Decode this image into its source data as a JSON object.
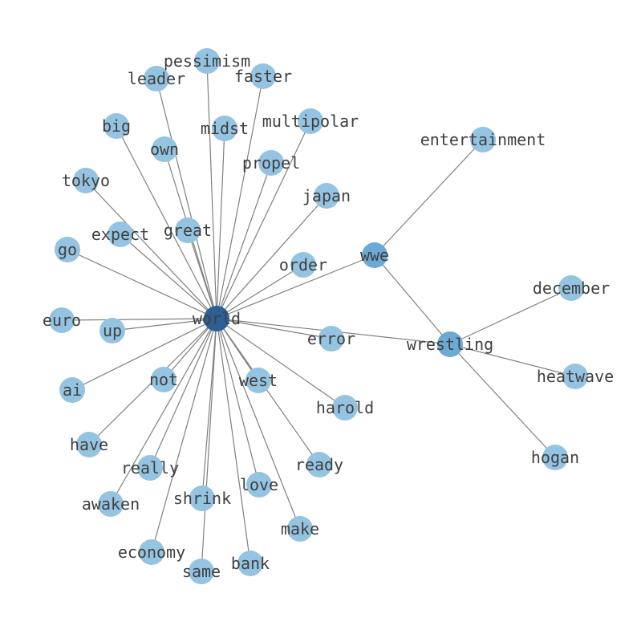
{
  "colors": {
    "hub": "#2d5f95",
    "secondary": "#6aaad5",
    "leaf": "#94c4e1",
    "edge": "#808080",
    "label": "#404040"
  },
  "nodes": [
    {
      "id": "world",
      "role": "hub"
    },
    {
      "id": "wwe",
      "role": "secondary"
    },
    {
      "id": "wrestling",
      "role": "secondary"
    },
    {
      "id": "entertainment",
      "role": "leaf"
    },
    {
      "id": "december",
      "role": "leaf"
    },
    {
      "id": "heatwave",
      "role": "leaf"
    },
    {
      "id": "hogan",
      "role": "leaf"
    },
    {
      "id": "pessimism",
      "role": "leaf"
    },
    {
      "id": "leader",
      "role": "leaf"
    },
    {
      "id": "faster",
      "role": "leaf"
    },
    {
      "id": "multipolar",
      "role": "leaf"
    },
    {
      "id": "midst",
      "role": "leaf"
    },
    {
      "id": "big",
      "role": "leaf"
    },
    {
      "id": "own",
      "role": "leaf"
    },
    {
      "id": "propel",
      "role": "leaf"
    },
    {
      "id": "tokyo",
      "role": "leaf"
    },
    {
      "id": "japan",
      "role": "leaf"
    },
    {
      "id": "great",
      "role": "leaf"
    },
    {
      "id": "expect",
      "role": "leaf"
    },
    {
      "id": "go",
      "role": "leaf"
    },
    {
      "id": "order",
      "role": "leaf"
    },
    {
      "id": "euro",
      "role": "leaf"
    },
    {
      "id": "up",
      "role": "leaf"
    },
    {
      "id": "error",
      "role": "leaf"
    },
    {
      "id": "ai",
      "role": "leaf"
    },
    {
      "id": "not",
      "role": "leaf"
    },
    {
      "id": "west",
      "role": "leaf"
    },
    {
      "id": "harold",
      "role": "leaf"
    },
    {
      "id": "have",
      "role": "leaf"
    },
    {
      "id": "really",
      "role": "leaf"
    },
    {
      "id": "ready",
      "role": "leaf"
    },
    {
      "id": "awaken",
      "role": "leaf"
    },
    {
      "id": "shrink",
      "role": "leaf"
    },
    {
      "id": "love",
      "role": "leaf"
    },
    {
      "id": "make",
      "role": "leaf"
    },
    {
      "id": "economy",
      "role": "leaf"
    },
    {
      "id": "same",
      "role": "leaf"
    },
    {
      "id": "bank",
      "role": "leaf"
    }
  ],
  "edges": [
    [
      "world",
      "wwe"
    ],
    [
      "world",
      "wrestling"
    ],
    [
      "wwe",
      "wrestling"
    ],
    [
      "wwe",
      "entertainment"
    ],
    [
      "wrestling",
      "december"
    ],
    [
      "wrestling",
      "heatwave"
    ],
    [
      "wrestling",
      "hogan"
    ],
    [
      "world",
      "pessimism"
    ],
    [
      "world",
      "leader"
    ],
    [
      "world",
      "faster"
    ],
    [
      "world",
      "multipolar"
    ],
    [
      "world",
      "midst"
    ],
    [
      "world",
      "big"
    ],
    [
      "world",
      "own"
    ],
    [
      "world",
      "propel"
    ],
    [
      "world",
      "tokyo"
    ],
    [
      "world",
      "japan"
    ],
    [
      "world",
      "great"
    ],
    [
      "world",
      "expect"
    ],
    [
      "world",
      "go"
    ],
    [
      "world",
      "order"
    ],
    [
      "world",
      "euro"
    ],
    [
      "world",
      "up"
    ],
    [
      "world",
      "error"
    ],
    [
      "world",
      "ai"
    ],
    [
      "world",
      "not"
    ],
    [
      "world",
      "west"
    ],
    [
      "world",
      "harold"
    ],
    [
      "world",
      "have"
    ],
    [
      "world",
      "really"
    ],
    [
      "world",
      "ready"
    ],
    [
      "world",
      "awaken"
    ],
    [
      "world",
      "shrink"
    ],
    [
      "world",
      "love"
    ],
    [
      "world",
      "make"
    ],
    [
      "world",
      "economy"
    ],
    [
      "world",
      "same"
    ],
    [
      "world",
      "bank"
    ]
  ]
}
